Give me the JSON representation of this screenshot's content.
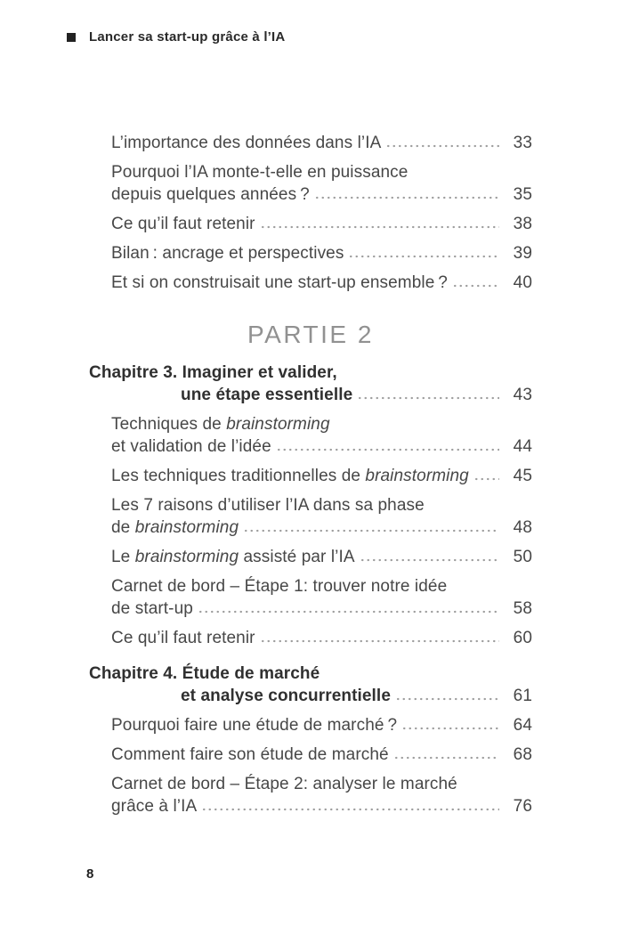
{
  "page": {
    "header": {
      "title": "Lancer sa start-up grâce à l’IA"
    },
    "footer": {
      "page_number": "8"
    }
  },
  "colors": {
    "body_text": "#474747",
    "chapter_text": "#303030",
    "part_heading": "#919191",
    "leader_dots": "#9e9e9e",
    "header_text": "#2a2a2a"
  },
  "toc": {
    "blocks": [
      {
        "type": "entry",
        "level": "sub",
        "page": "33",
        "lines": [
          [
            {
              "t": "L’importance des données dans l’IA"
            }
          ]
        ]
      },
      {
        "type": "entry",
        "level": "sub",
        "page": "35",
        "lines": [
          [
            {
              "t": "Pourquoi l’IA monte-t-elle en puissance"
            }
          ],
          [
            {
              "t": "depuis quelques années ?"
            }
          ]
        ]
      },
      {
        "type": "entry",
        "level": "sub",
        "page": "38",
        "lines": [
          [
            {
              "t": "Ce qu’il faut retenir"
            }
          ]
        ]
      },
      {
        "type": "entry",
        "level": "sub",
        "page": "39",
        "lines": [
          [
            {
              "t": "Bilan : ancrage et perspectives"
            }
          ]
        ]
      },
      {
        "type": "entry",
        "level": "sub",
        "page": "40",
        "lines": [
          [
            {
              "t": "Et si on construisait une start-up ensemble ?"
            }
          ]
        ]
      },
      {
        "type": "part",
        "label": "PARTIE 2"
      },
      {
        "type": "entry",
        "level": "chapter",
        "page": "43",
        "lines": [
          [
            {
              "t": "Chapitre 3. Imaginer et valider,"
            }
          ],
          [
            {
              "t": "une étape essentielle"
            }
          ]
        ]
      },
      {
        "type": "entry",
        "level": "sub",
        "page": "44",
        "lines": [
          [
            {
              "t": "Techniques de "
            },
            {
              "t": "brainstorming",
              "i": true
            }
          ],
          [
            {
              "t": "et validation de l’idée"
            }
          ]
        ]
      },
      {
        "type": "entry",
        "level": "sub",
        "page": "45",
        "lines": [
          [
            {
              "t": "Les techniques traditionnelles de "
            },
            {
              "t": "brainstorming",
              "i": true
            }
          ]
        ]
      },
      {
        "type": "entry",
        "level": "sub",
        "page": "48",
        "lines": [
          [
            {
              "t": "Les 7 raisons d’utiliser l’IA dans sa phase"
            }
          ],
          [
            {
              "t": "de "
            },
            {
              "t": "brainstorming",
              "i": true
            }
          ]
        ]
      },
      {
        "type": "entry",
        "level": "sub",
        "page": "50",
        "lines": [
          [
            {
              "t": "Le "
            },
            {
              "t": "brainstorming",
              "i": true
            },
            {
              "t": " assisté par l’IA"
            }
          ]
        ]
      },
      {
        "type": "entry",
        "level": "sub",
        "page": "58",
        "lines": [
          [
            {
              "t": "Carnet de bord – Étape 1: trouver notre idée"
            }
          ],
          [
            {
              "t": "de start-up"
            }
          ]
        ]
      },
      {
        "type": "entry",
        "level": "sub",
        "page": "60",
        "lines": [
          [
            {
              "t": "Ce qu’il faut retenir"
            }
          ]
        ]
      },
      {
        "type": "entry",
        "level": "chapter",
        "page": "61",
        "lines": [
          [
            {
              "t": "Chapitre 4. Étude de marché"
            }
          ],
          [
            {
              "t": "et analyse concurrentielle"
            }
          ]
        ]
      },
      {
        "type": "entry",
        "level": "sub",
        "page": "64",
        "lines": [
          [
            {
              "t": "Pourquoi faire une étude de marché ?"
            }
          ]
        ]
      },
      {
        "type": "entry",
        "level": "sub",
        "page": "68",
        "lines": [
          [
            {
              "t": "Comment faire son étude de marché"
            }
          ]
        ]
      },
      {
        "type": "entry",
        "level": "sub",
        "page": "76",
        "lines": [
          [
            {
              "t": "Carnet de bord – Étape 2: analyser le marché"
            }
          ],
          [
            {
              "t": "grâce à l’IA"
            }
          ]
        ]
      }
    ]
  }
}
